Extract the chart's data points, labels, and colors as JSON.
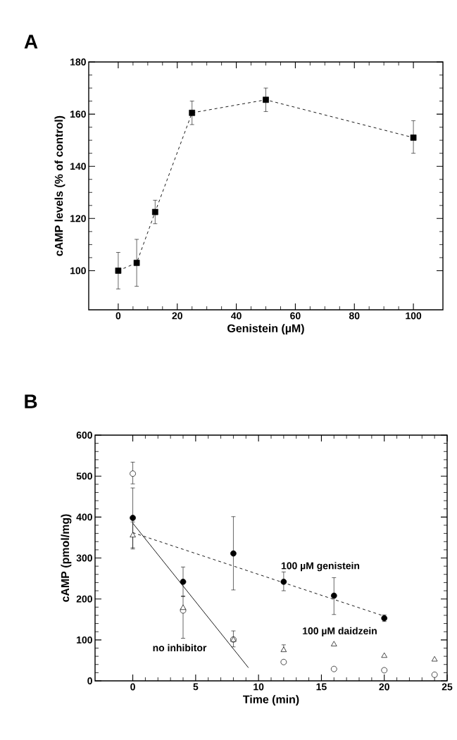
{
  "chart_data": [
    {
      "type": "line",
      "title": "A",
      "xlabel": "Genistein (µM)",
      "ylabel": "cAMP levels (% of control)",
      "x": [
        0,
        6.25,
        12.5,
        25,
        50,
        100
      ],
      "series": [
        {
          "color": "#000000",
          "values": [
            100,
            103,
            122.5,
            160.5,
            165.5,
            151
          ],
          "errors": [
            [
              93,
              107
            ],
            [
              94,
              112
            ],
            [
              118,
              127
            ],
            [
              156,
              165
            ],
            [
              161,
              170
            ],
            [
              145,
              157.5
            ]
          ]
        }
      ],
      "marker": "square",
      "line_style": "dashed",
      "xlim": [
        -10,
        110
      ],
      "ylim": [
        85,
        180
      ],
      "xticks": [
        0,
        20,
        40,
        60,
        80,
        100
      ],
      "yticks": [
        100,
        120,
        140,
        160,
        180
      ]
    },
    {
      "type": "scatter",
      "title": "B",
      "xlabel": "Time (min)",
      "ylabel": "cAMP (pmol/mg)",
      "x": [
        0,
        4,
        8,
        12,
        16,
        20,
        24
      ],
      "series": [
        {
          "name": "100 µM genistein",
          "color": "#000000",
          "marker": "circle",
          "x": [
            0,
            4,
            8,
            12,
            16,
            20
          ],
          "values": [
            398,
            242,
            311,
            242,
            208,
            153
          ],
          "errors": [
            [
              325,
              471
            ],
            [
              206,
              278
            ],
            [
              222,
              401
            ],
            [
              220,
              266
            ],
            [
              162,
              252
            ],
            [
              145,
              161
            ]
          ]
        },
        {
          "type": "line",
          "color": "#000000",
          "line_style": "dashed",
          "marker": "none",
          "x": [
            0,
            20
          ],
          "values": [
            362,
            158
          ]
        },
        {
          "name": "no inhibitor",
          "color": "#ffffff",
          "marker": "circle",
          "values": [
            506,
            172,
            101,
            46,
            29,
            26,
            15
          ],
          "errors": [
            [
              481,
              534
            ],
            [
              104,
              207
            ],
            [
              83,
              122
            ],
            null,
            null,
            null,
            null
          ]
        },
        {
          "type": "line",
          "color": "#000000",
          "line_style": "solid",
          "marker": "none",
          "x": [
            0,
            9.2
          ],
          "values": [
            385,
            32
          ]
        },
        {
          "name": "100 µM daidzein",
          "color": "#ffffff",
          "marker": "triangle",
          "values": [
            355,
            178,
            100,
            75,
            89,
            61,
            52
          ],
          "errors": [
            33,
            null,
            null,
            [
              75,
              88
            ],
            null,
            null,
            null
          ]
        }
      ],
      "xlim": [
        -3,
        25
      ],
      "ylim": [
        0,
        600
      ],
      "xticks": [
        0,
        5,
        10,
        15,
        20,
        25
      ],
      "yticks": [
        0,
        100,
        200,
        300,
        400,
        500,
        600
      ]
    }
  ]
}
